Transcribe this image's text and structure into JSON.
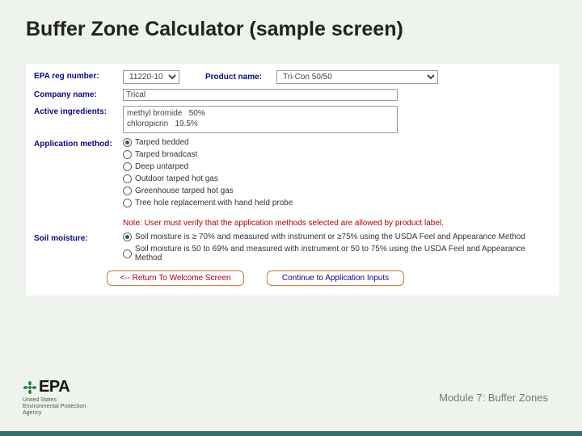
{
  "title": "Buffer Zone Calculator (sample screen)",
  "footer": {
    "logo_text": "EPA",
    "logo_sub": "United States\nEnvironmental Protection\nAgency",
    "module": "Module 7: Buffer Zones"
  },
  "form": {
    "reg_label": "EPA reg number:",
    "reg_value": "11220-10",
    "product_label": "Product name:",
    "product_value": "Tri-Con 50/50",
    "company_label": "Company name:",
    "company_value": "Trical",
    "ingredients_label": "Active ingredients:",
    "ingredients_text": "methyl bromide   50%\nchloropicrin   19.5%",
    "method_label": "Application method:",
    "methods": [
      {
        "label": "Tarped bedded",
        "selected": true
      },
      {
        "label": "Tarped broadcast",
        "selected": false
      },
      {
        "label": "Deep untarped",
        "selected": false
      },
      {
        "label": "Outdoor tarped hot gas",
        "selected": false
      },
      {
        "label": "Greenhouse tarped hot gas",
        "selected": false
      },
      {
        "label": "Tree hole replacement with hand held probe",
        "selected": false
      }
    ],
    "method_note": "Note: User must verify that the application methods selected are allowed by product label.",
    "moisture_label": "Soil moisture:",
    "moisture": [
      {
        "label": "Soil moisture is ≥ 70% and measured with instrument or ≥75% using the USDA Feel and Appearance Method",
        "selected": true
      },
      {
        "label": "Soil moisture is 50 to 69% and measured with instrument or 50 to 75% using the USDA Feel and Appearance Method",
        "selected": false
      }
    ],
    "btn_back": "<-- Return To Welcome Screen",
    "btn_continue": "Continue to Application Inputs"
  }
}
